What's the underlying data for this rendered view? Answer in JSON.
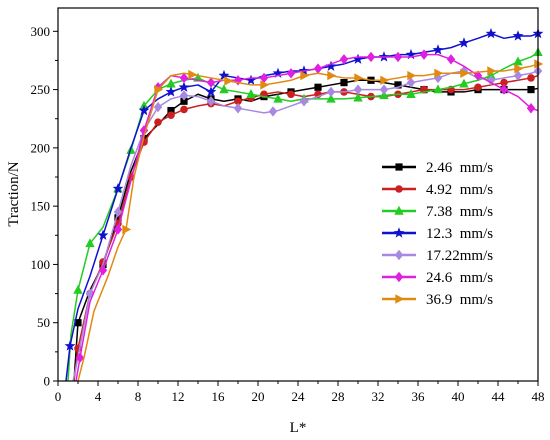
{
  "chart_data": {
    "type": "line",
    "xlabel": "L*",
    "ylabel": "Traction/N",
    "xlim": [
      0,
      48
    ],
    "ylim": [
      0,
      320
    ],
    "xticks": [
      0,
      4,
      8,
      12,
      16,
      20,
      24,
      28,
      32,
      36,
      40,
      44,
      48
    ],
    "yticks": [
      0,
      50,
      100,
      150,
      200,
      250,
      300
    ],
    "grid": false,
    "legend_position": "right-middle",
    "series": [
      {
        "name": "2.46  mm/s",
        "color": "#000000",
        "marker": "square",
        "points": [
          [
            1.6,
            0
          ],
          [
            2.0,
            50
          ],
          [
            3.2,
            78
          ],
          [
            4.5,
            100
          ],
          [
            6.0,
            140
          ],
          [
            7.3,
            180
          ],
          [
            8.6,
            208
          ],
          [
            10.0,
            220
          ],
          [
            11.3,
            232
          ],
          [
            12.6,
            240
          ],
          [
            14.0,
            246
          ],
          [
            15.3,
            242
          ],
          [
            16.6,
            240
          ],
          [
            18.0,
            242
          ],
          [
            19.3,
            240
          ],
          [
            20.6,
            244
          ],
          [
            22.0,
            246
          ],
          [
            23.3,
            248
          ],
          [
            24.6,
            250
          ],
          [
            26.0,
            252
          ],
          [
            27.3,
            254
          ],
          [
            28.6,
            256
          ],
          [
            30.0,
            258
          ],
          [
            31.3,
            258
          ],
          [
            32.6,
            256
          ],
          [
            34.0,
            254
          ],
          [
            35.3,
            252
          ],
          [
            36.6,
            250
          ],
          [
            38.0,
            248
          ],
          [
            39.3,
            248
          ],
          [
            40.6,
            248
          ],
          [
            42.0,
            250
          ],
          [
            43.3,
            250
          ],
          [
            44.6,
            250
          ],
          [
            46.0,
            250
          ],
          [
            47.3,
            250
          ],
          [
            48.0,
            251
          ]
        ],
        "marked_x": [
          2.0,
          4.5,
          6.0,
          8.6,
          11.3,
          12.6,
          15.3,
          18.0,
          20.6,
          23.3,
          26.0,
          28.6,
          31.3,
          34.0,
          36.6,
          39.3,
          42.0,
          44.6,
          47.3
        ]
      },
      {
        "name": "4.92  mm/s",
        "color": "#cc2020",
        "marker": "circle",
        "points": [
          [
            1.6,
            0
          ],
          [
            2.0,
            28
          ],
          [
            3.2,
            75
          ],
          [
            4.5,
            102
          ],
          [
            6.0,
            135
          ],
          [
            7.3,
            175
          ],
          [
            8.6,
            205
          ],
          [
            10.0,
            222
          ],
          [
            11.3,
            228
          ],
          [
            12.6,
            233
          ],
          [
            14.0,
            236
          ],
          [
            15.3,
            238
          ],
          [
            16.6,
            236
          ],
          [
            18.0,
            240
          ],
          [
            19.3,
            243
          ],
          [
            20.6,
            246
          ],
          [
            22.0,
            248
          ],
          [
            23.3,
            246
          ],
          [
            24.6,
            244
          ],
          [
            26.0,
            246
          ],
          [
            27.3,
            248
          ],
          [
            28.6,
            248
          ],
          [
            30.0,
            246
          ],
          [
            31.3,
            244
          ],
          [
            32.6,
            244
          ],
          [
            34.0,
            246
          ],
          [
            35.3,
            248
          ],
          [
            36.6,
            250
          ],
          [
            38.0,
            250
          ],
          [
            39.3,
            250
          ],
          [
            40.6,
            250
          ],
          [
            42.0,
            252
          ],
          [
            43.3,
            254
          ],
          [
            44.6,
            256
          ],
          [
            46.0,
            258
          ],
          [
            47.3,
            260
          ],
          [
            48.0,
            262
          ]
        ],
        "marked_x": [
          2.0,
          3.2,
          4.5,
          6.0,
          7.3,
          8.6,
          10.0,
          11.3,
          12.6,
          15.3,
          18.0,
          19.3,
          20.6,
          23.3,
          26.0,
          28.6,
          31.3,
          34.0,
          36.6,
          39.3,
          42.0,
          44.6,
          47.3
        ]
      },
      {
        "name": "7.38  mm/s",
        "color": "#22cc22",
        "marker": "triangle",
        "points": [
          [
            1.0,
            0
          ],
          [
            1.3,
            40
          ],
          [
            2.0,
            78
          ],
          [
            3.2,
            118
          ],
          [
            4.5,
            132
          ],
          [
            6.0,
            165
          ],
          [
            7.3,
            198
          ],
          [
            8.6,
            236
          ],
          [
            10.0,
            250
          ],
          [
            11.3,
            255
          ],
          [
            12.6,
            258
          ],
          [
            14.0,
            260
          ],
          [
            15.3,
            255
          ],
          [
            16.6,
            250
          ],
          [
            18.0,
            248
          ],
          [
            19.3,
            246
          ],
          [
            20.6,
            244
          ],
          [
            22.0,
            242
          ],
          [
            23.3,
            240
          ],
          [
            24.6,
            242
          ],
          [
            26.0,
            242
          ],
          [
            27.3,
            242
          ],
          [
            28.6,
            242
          ],
          [
            30.0,
            243
          ],
          [
            31.3,
            244
          ],
          [
            32.6,
            245
          ],
          [
            34.0,
            246
          ],
          [
            35.3,
            246
          ],
          [
            36.6,
            248
          ],
          [
            38.0,
            250
          ],
          [
            39.3,
            252
          ],
          [
            40.6,
            255
          ],
          [
            42.0,
            258
          ],
          [
            43.3,
            262
          ],
          [
            44.6,
            268
          ],
          [
            46.0,
            274
          ],
          [
            47.3,
            278
          ],
          [
            48.0,
            282
          ]
        ],
        "marked_x": [
          2.0,
          3.2,
          6.0,
          7.3,
          8.6,
          11.3,
          14.0,
          16.6,
          19.3,
          22.0,
          24.6,
          27.3,
          30.0,
          32.6,
          35.3,
          38.0,
          40.6,
          43.3,
          46.0,
          48.0
        ]
      },
      {
        "name": "12.3  mm/s",
        "color": "#1010d0",
        "marker": "star",
        "points": [
          [
            0.8,
            0
          ],
          [
            1.2,
            30
          ],
          [
            2.0,
            62
          ],
          [
            3.2,
            90
          ],
          [
            4.5,
            125
          ],
          [
            6.0,
            165
          ],
          [
            7.3,
            200
          ],
          [
            8.6,
            232
          ],
          [
            10.0,
            242
          ],
          [
            11.3,
            248
          ],
          [
            12.6,
            252
          ],
          [
            14.0,
            254
          ],
          [
            15.3,
            248
          ],
          [
            16.6,
            262
          ],
          [
            18.0,
            260
          ],
          [
            19.3,
            258
          ],
          [
            20.6,
            262
          ],
          [
            22.0,
            264
          ],
          [
            23.3,
            266
          ],
          [
            24.6,
            266
          ],
          [
            26.0,
            268
          ],
          [
            27.3,
            270
          ],
          [
            28.6,
            272
          ],
          [
            30.0,
            276
          ],
          [
            31.3,
            278
          ],
          [
            32.6,
            278
          ],
          [
            34.0,
            280
          ],
          [
            35.3,
            280
          ],
          [
            36.6,
            282
          ],
          [
            38.0,
            284
          ],
          [
            39.3,
            286
          ],
          [
            40.6,
            290
          ],
          [
            42.0,
            294
          ],
          [
            43.3,
            298
          ],
          [
            44.6,
            294
          ],
          [
            46.0,
            296
          ],
          [
            47.3,
            296
          ],
          [
            48.0,
            298
          ]
        ],
        "marked_x": [
          1.2,
          4.5,
          6.0,
          8.6,
          11.3,
          12.6,
          15.3,
          16.6,
          19.3,
          22.0,
          24.6,
          27.3,
          30.0,
          32.6,
          35.3,
          38.0,
          40.6,
          43.3,
          46.0,
          48.0
        ]
      },
      {
        "name": "17.22mm/s",
        "color": "#a888e0",
        "marker": "diamond",
        "points": [
          [
            1.5,
            0
          ],
          [
            2.0,
            20
          ],
          [
            3.2,
            75
          ],
          [
            4.5,
            100
          ],
          [
            6.0,
            145
          ],
          [
            7.3,
            185
          ],
          [
            8.6,
            215
          ],
          [
            10.0,
            235
          ],
          [
            11.3,
            242
          ],
          [
            12.6,
            245
          ],
          [
            14.0,
            244
          ],
          [
            15.3,
            240
          ],
          [
            16.6,
            236
          ],
          [
            18.0,
            234
          ],
          [
            19.3,
            232
          ],
          [
            20.6,
            230
          ],
          [
            22.0,
            232
          ],
          [
            23.3,
            236
          ],
          [
            24.6,
            240
          ],
          [
            26.0,
            244
          ],
          [
            27.3,
            248
          ],
          [
            28.6,
            248
          ],
          [
            30.0,
            250
          ],
          [
            31.3,
            250
          ],
          [
            32.6,
            250
          ],
          [
            34.0,
            252
          ],
          [
            35.3,
            256
          ],
          [
            36.6,
            258
          ],
          [
            38.0,
            260
          ],
          [
            39.3,
            264
          ],
          [
            40.6,
            266
          ],
          [
            42.0,
            260
          ],
          [
            43.3,
            258
          ],
          [
            44.6,
            260
          ],
          [
            46.0,
            262
          ],
          [
            47.3,
            264
          ],
          [
            48.0,
            266
          ]
        ],
        "marked_x": [
          3.2,
          6.0,
          8.6,
          10.0,
          12.6,
          15.3,
          18.0,
          21.5,
          24.6,
          27.3,
          30.0,
          32.6,
          35.3,
          38.0,
          40.6,
          43.3,
          46.0,
          48.0
        ]
      },
      {
        "name": "24.6  mm/s",
        "color": "#e020e0",
        "marker": "diamond",
        "points": [
          [
            1.8,
            0
          ],
          [
            2.2,
            20
          ],
          [
            3.2,
            68
          ],
          [
            4.5,
            95
          ],
          [
            6.0,
            130
          ],
          [
            7.3,
            172
          ],
          [
            8.6,
            215
          ],
          [
            10.0,
            252
          ],
          [
            11.3,
            262
          ],
          [
            12.6,
            260
          ],
          [
            14.0,
            258
          ],
          [
            15.3,
            256
          ],
          [
            16.6,
            258
          ],
          [
            18.0,
            258
          ],
          [
            19.3,
            260
          ],
          [
            20.6,
            260
          ],
          [
            22.0,
            262
          ],
          [
            23.3,
            264
          ],
          [
            24.6,
            266
          ],
          [
            26.0,
            268
          ],
          [
            27.3,
            272
          ],
          [
            28.6,
            276
          ],
          [
            30.0,
            278
          ],
          [
            31.3,
            278
          ],
          [
            32.6,
            278
          ],
          [
            34.0,
            278
          ],
          [
            35.3,
            278
          ],
          [
            36.6,
            280
          ],
          [
            38.0,
            280
          ],
          [
            39.3,
            276
          ],
          [
            40.6,
            270
          ],
          [
            42.0,
            262
          ],
          [
            43.3,
            256
          ],
          [
            44.6,
            250
          ],
          [
            46.0,
            244
          ],
          [
            47.3,
            234
          ],
          [
            48.0,
            232
          ]
        ],
        "marked_x": [
          2.2,
          4.5,
          6.0,
          8.6,
          10.0,
          12.6,
          15.3,
          18.0,
          20.6,
          23.3,
          26.0,
          28.6,
          31.3,
          34.0,
          36.6,
          39.3,
          42.0,
          44.6,
          47.3
        ]
      },
      {
        "name": "36.9  mm/s",
        "color": "#e08a10",
        "marker": "triangle-right",
        "points": [
          [
            2.0,
            0
          ],
          [
            2.6,
            20
          ],
          [
            3.6,
            60
          ],
          [
            5.0,
            90
          ],
          [
            6.0,
            115
          ],
          [
            6.8,
            130
          ],
          [
            7.6,
            175
          ],
          [
            8.6,
            210
          ],
          [
            10.0,
            250
          ],
          [
            11.3,
            262
          ],
          [
            12.6,
            264
          ],
          [
            14.0,
            262
          ],
          [
            15.3,
            260
          ],
          [
            16.6,
            258
          ],
          [
            18.0,
            256
          ],
          [
            19.3,
            254
          ],
          [
            20.6,
            254
          ],
          [
            22.0,
            256
          ],
          [
            23.3,
            258
          ],
          [
            24.6,
            262
          ],
          [
            26.0,
            264
          ],
          [
            27.3,
            262
          ],
          [
            28.6,
            260
          ],
          [
            30.0,
            260
          ],
          [
            31.3,
            258
          ],
          [
            32.6,
            258
          ],
          [
            34.0,
            260
          ],
          [
            35.3,
            262
          ],
          [
            36.6,
            262
          ],
          [
            38.0,
            264
          ],
          [
            39.3,
            264
          ],
          [
            40.6,
            264
          ],
          [
            42.0,
            265
          ],
          [
            43.3,
            266
          ],
          [
            44.6,
            266
          ],
          [
            46.0,
            268
          ],
          [
            47.3,
            270
          ],
          [
            48.0,
            272
          ]
        ],
        "marked_x": [
          6.8,
          10.0,
          13.4,
          17.0,
          20.6,
          24.6,
          27.3,
          30.0,
          32.6,
          35.3,
          38.0,
          40.6,
          43.3,
          46.0,
          48.0
        ]
      }
    ]
  }
}
